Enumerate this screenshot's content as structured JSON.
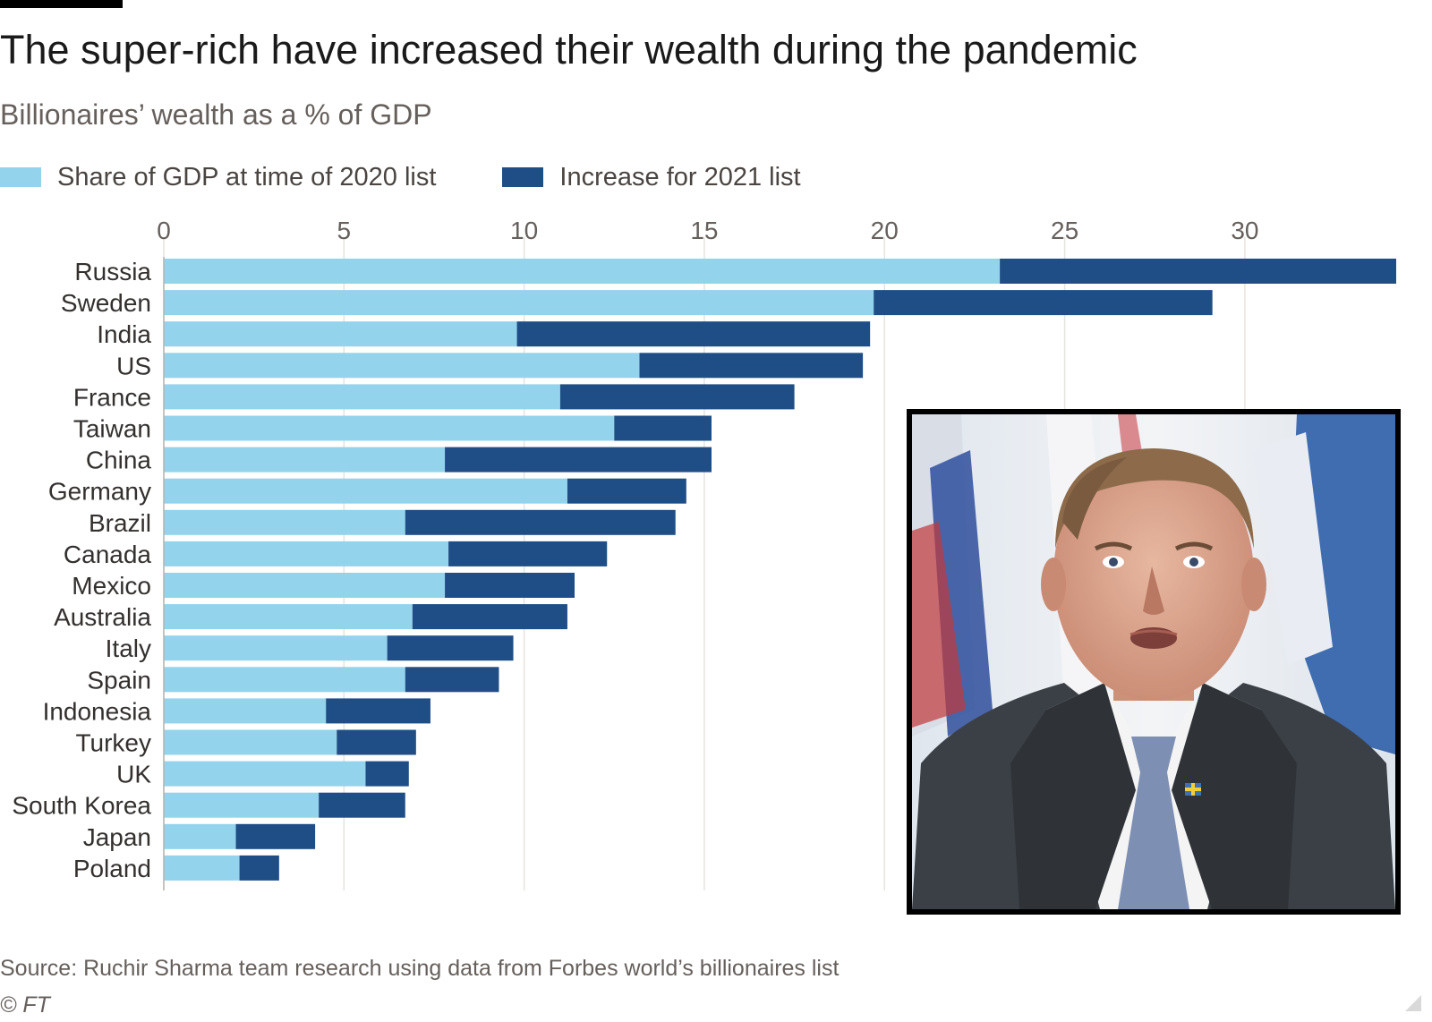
{
  "title": "The super-rich have increased their wealth during the pandemic",
  "subtitle": "Billionaires’ wealth as a % of GDP",
  "legend": [
    {
      "label": "Share of GDP at time of 2020 list",
      "color": "#93d3ec"
    },
    {
      "label": "Increase for 2021 list",
      "color": "#1f4e86"
    }
  ],
  "source": "Source: Ruchir Sharma team research using data from Forbes world’s billionaires list",
  "copyright": "© FT",
  "chart_data": {
    "type": "bar",
    "orientation": "horizontal",
    "stacked": true,
    "title": "The super-rich have increased their wealth during the pandemic",
    "subtitle": "Billionaires’ wealth as a % of GDP",
    "xlim": [
      0,
      34.2
    ],
    "xticks": [
      0,
      5,
      10,
      15,
      20,
      25,
      30
    ],
    "grid": "vertical",
    "legend_position": "top-left",
    "categories": [
      "Russia",
      "Sweden",
      "India",
      "US",
      "France",
      "Taiwan",
      "China",
      "Germany",
      "Brazil",
      "Canada",
      "Mexico",
      "Australia",
      "Italy",
      "Spain",
      "Indonesia",
      "Turkey",
      "UK",
      "South Korea",
      "Japan",
      "Poland"
    ],
    "series": [
      {
        "name": "Share of GDP at time of 2020 list",
        "color": "#93d3ec",
        "values": [
          23.2,
          19.7,
          9.8,
          13.2,
          11.0,
          12.5,
          7.8,
          11.2,
          6.7,
          7.9,
          7.8,
          6.9,
          6.2,
          6.7,
          4.5,
          4.8,
          5.6,
          4.3,
          2.0,
          2.1
        ]
      },
      {
        "name": "Increase for 2021 list",
        "color": "#1f4e86",
        "values": [
          11.0,
          9.4,
          9.8,
          6.2,
          6.5,
          2.7,
          7.4,
          3.3,
          7.5,
          4.4,
          3.6,
          4.3,
          3.5,
          2.6,
          2.9,
          2.2,
          1.2,
          2.4,
          2.2,
          1.1
        ]
      }
    ]
  },
  "photo": {
    "description_icon": "portrait-photo"
  }
}
